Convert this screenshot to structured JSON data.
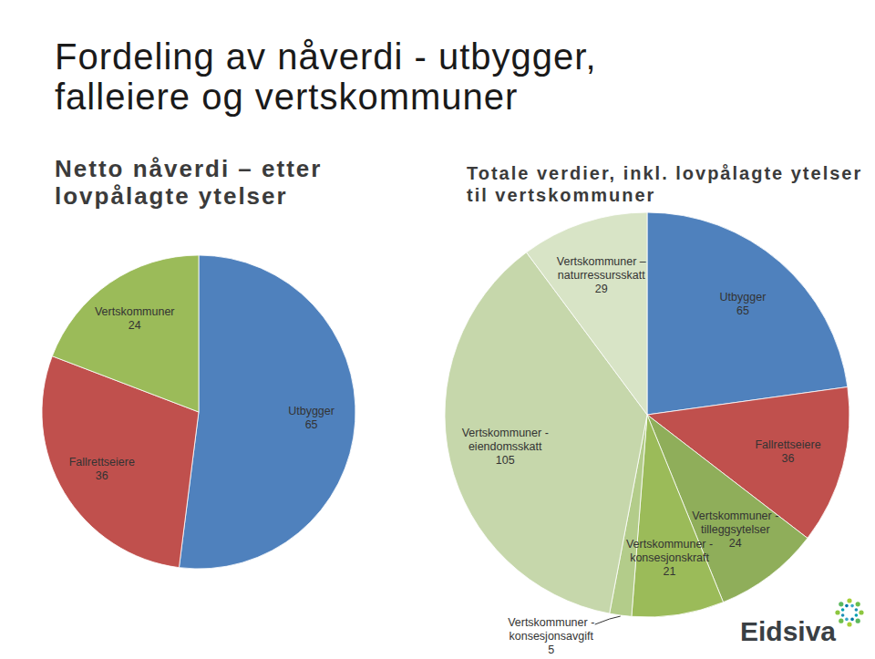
{
  "title": "Fordeling av nåverdi - utbygger, falleiere og vertskommuner",
  "logo": "Eidsiva",
  "chart_data": [
    {
      "type": "pie",
      "title": "Netto nåverdi – etter lovpålagte ytelser",
      "categories": [
        "Utbygger",
        "Fallrettseiere",
        "Vertskommuner"
      ],
      "values": [
        65,
        36,
        24
      ],
      "colors": [
        "#4f81bd",
        "#c0504d",
        "#9bbb59"
      ],
      "data_labels": true
    },
    {
      "type": "pie",
      "title": "Totale verdier, inkl. lovpålagte ytelser til vertskommuner",
      "categories": [
        "Utbygger",
        "Fallrettseiere",
        "Vertskommuner - tilleggsytelser",
        "Vertskommuner - konsesjonskraft",
        "Vertskommuner - konsesjonsavgift",
        "Vertskommuner - eiendomsskatt",
        "Vertskommuner – naturressursskatt"
      ],
      "values": [
        65,
        36,
        24,
        21,
        5,
        105,
        29
      ],
      "colors": [
        "#4f81bd",
        "#c0504d",
        "#8fae5a",
        "#9bbb59",
        "#b3cc8a",
        "#c6d7ab",
        "#d8e4c6"
      ],
      "data_labels": true
    }
  ]
}
